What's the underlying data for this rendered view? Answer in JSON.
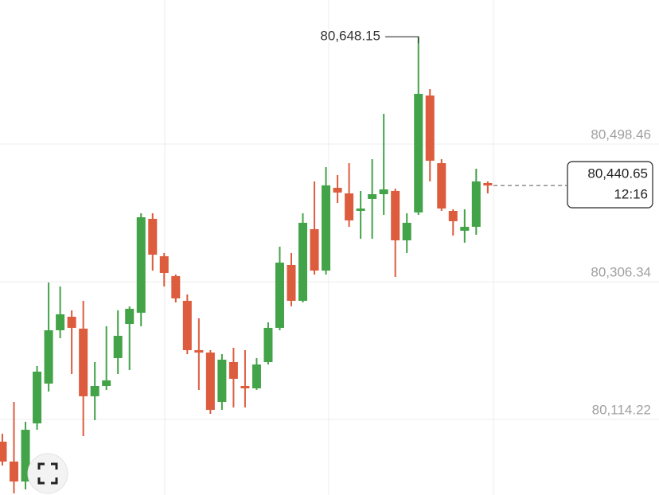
{
  "chart_data": {
    "type": "candlestick",
    "open": [
      80083.2,
      80055.4,
      80027.6,
      80108.7,
      80164.2,
      80238.6,
      80257.5,
      80240.9,
      80146.5,
      80160.9,
      80199.8,
      80247.5,
      80263.1,
      80394.1,
      80341.9,
      80314.2,
      80279.7,
      80210.9,
      80207.5,
      80138.7,
      80194.2,
      80160.9,
      80157.6,
      80194.2,
      80242.0,
      80329.7,
      80279.7,
      80379.7,
      80321.9,
      80437.4,
      80429.6,
      80405.2,
      80421.9,
      80428.5,
      80433.0,
      80364.1,
      80403.0,
      80566.2,
      80471.8,
      80405.2,
      80377.5,
      80383.0,
      80444.1
    ],
    "high": [
      80094.3,
      80138.7,
      80110.9,
      80188.7,
      80305.3,
      80299.7,
      80266.4,
      80279.7,
      80194.2,
      80244.2,
      80266.4,
      80272.0,
      80401.9,
      80401.9,
      80346.4,
      80316.4,
      80288.6,
      80255.3,
      80210.9,
      80205.3,
      80214.2,
      80210.9,
      80199.8,
      80249.7,
      80355.2,
      80346.4,
      80401.9,
      80446.3,
      80466.3,
      80455.2,
      80471.8,
      80433.0,
      80477.4,
      80540.7,
      80436.3,
      80401.9,
      80648.15,
      80575.1,
      80477.4,
      80407.4,
      80407.4,
      80464.1,
      80446.3
    ],
    "low": [
      80049.9,
      80011.0,
      80016.5,
      80099.8,
      80153.1,
      80227.5,
      80177.6,
      80090.9,
      80113.2,
      80155.4,
      80177.6,
      80183.1,
      80244.2,
      80321.9,
      80299.7,
      80277.5,
      80205.3,
      80155.4,
      80122.0,
      80127.6,
      80130.9,
      80130.9,
      80155.4,
      80190.9,
      80238.6,
      80272.0,
      80277.5,
      80316.4,
      80316.4,
      80416.3,
      80383.0,
      80366.3,
      80366.3,
      80399.7,
      80313.0,
      80346.4,
      80399.7,
      80446.3,
      80405.2,
      80370.8,
      80360.8,
      80371.9,
      80429.6
    ],
    "close": [
      80055.4,
      80027.6,
      80099.8,
      80180.9,
      80238.6,
      80260.9,
      80242.0,
      80146.5,
      80160.9,
      80168.7,
      80230.9,
      80268.6,
      80396.3,
      80344.1,
      80318.6,
      80283.1,
      80210.9,
      80207.5,
      80127.6,
      80197.6,
      80170.9,
      80157.6,
      80190.9,
      80242.0,
      80333.0,
      80279.7,
      80388.6,
      80321.9,
      80440.8,
      80430.8,
      80391.9,
      80408.5,
      80428.5,
      80435.2,
      80364.1,
      80388.6,
      80568.5,
      80475.2,
      80408.5,
      80390.8,
      80383.0,
      80446.3,
      80440.65
    ],
    "up_color": "#43a348",
    "down_color": "#dd5c3e",
    "ylim": [
      80008.76,
      80699.46
    ],
    "yticks": [
      {
        "value": 80114.22,
        "label": "80,114.22"
      },
      {
        "value": 80306.34,
        "label": "80,306.34"
      },
      {
        "value": 80498.46,
        "label": "80,498.46"
      }
    ],
    "grid": true,
    "max_label": {
      "value": 80648.15,
      "label": "80,648.15"
    },
    "last_price": {
      "value": 80440.65,
      "label": "80,440.65"
    },
    "time_label": "12:16"
  }
}
